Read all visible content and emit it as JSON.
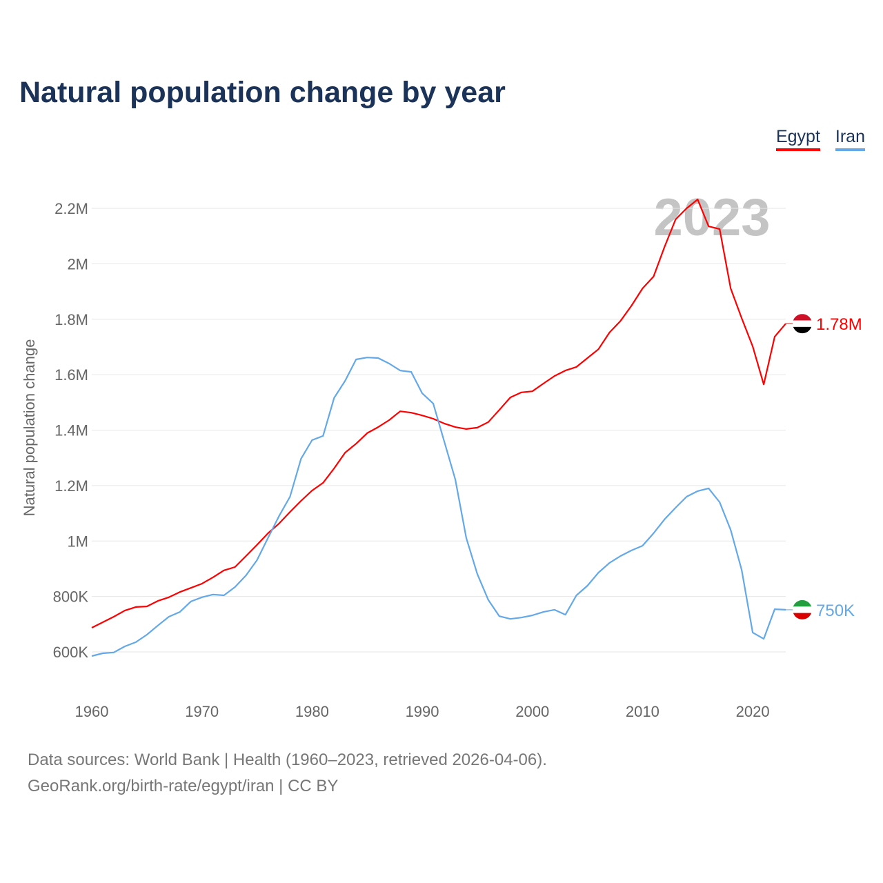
{
  "title": "Natural population change by year",
  "legend": [
    {
      "name": "Egypt",
      "color": "#ff0000"
    },
    {
      "name": "Iran",
      "color": "#63a8e8"
    }
  ],
  "footer": {
    "line1": "Data sources: World Bank | Health (1960–2023, retrieved 2026-04-06).",
    "line2": "GeoRank.org/birth-rate/egypt/iran | CC BY"
  },
  "chart_data": {
    "type": "line",
    "title": "Natural population change by year",
    "xlabel": "",
    "ylabel": "Natural population change",
    "watermark_year": "2023",
    "xlim": [
      1960,
      2023
    ],
    "ylim": [
      500000,
      2300000
    ],
    "x_ticks": [
      1960,
      1970,
      1980,
      1990,
      2000,
      2010,
      2020
    ],
    "y_ticks": [
      600000,
      800000,
      1000000,
      1200000,
      1400000,
      1600000,
      1800000,
      2000000,
      2200000
    ],
    "y_tick_labels": [
      "600K",
      "800K",
      "1M",
      "1.2M",
      "1.4M",
      "1.6M",
      "1.8M",
      "2M",
      "2.2M"
    ],
    "grid": true,
    "legend_position": "top-right",
    "x": [
      1960,
      1961,
      1962,
      1963,
      1964,
      1965,
      1966,
      1967,
      1968,
      1969,
      1970,
      1971,
      1972,
      1973,
      1974,
      1975,
      1976,
      1977,
      1978,
      1979,
      1980,
      1981,
      1982,
      1983,
      1984,
      1985,
      1986,
      1987,
      1988,
      1989,
      1990,
      1991,
      1992,
      1993,
      1994,
      1995,
      1996,
      1997,
      1998,
      1999,
      2000,
      2001,
      2002,
      2003,
      2004,
      2005,
      2006,
      2007,
      2008,
      2009,
      2010,
      2011,
      2012,
      2013,
      2014,
      2015,
      2016,
      2017,
      2018,
      2019,
      2020,
      2021,
      2022,
      2023
    ],
    "series": [
      {
        "name": "Egypt",
        "color": "#ff0000",
        "end_label": "1.78M",
        "flag": [
          "#ce1126",
          "#ffffff",
          "#000000"
        ],
        "values": [
          687000,
          707000,
          727000,
          749000,
          762000,
          764000,
          784000,
          797000,
          816000,
          831000,
          846000,
          869000,
          894000,
          906000,
          946000,
          986000,
          1028000,
          1063000,
          1105000,
          1145000,
          1182000,
          1210000,
          1262000,
          1319000,
          1351000,
          1389000,
          1411000,
          1436000,
          1468000,
          1463000,
          1453000,
          1441000,
          1424000,
          1411000,
          1404000,
          1409000,
          1429000,
          1473000,
          1518000,
          1536000,
          1540000,
          1568000,
          1595000,
          1615000,
          1628000,
          1660000,
          1692000,
          1752000,
          1794000,
          1849000,
          1911000,
          1954000,
          2061000,
          2160000,
          2200000,
          2232000,
          2135000,
          2125000,
          1911000,
          1804000,
          1702000,
          1565000,
          1737000,
          1784000
        ]
      },
      {
        "name": "Iran",
        "color": "#63a8e8",
        "end_label": "750K",
        "flag": [
          "#239f40",
          "#ffffff",
          "#da0000"
        ],
        "values": [
          585000,
          595000,
          598000,
          620000,
          635000,
          662000,
          695000,
          727000,
          744000,
          782000,
          797000,
          807000,
          804000,
          834000,
          876000,
          931000,
          1011000,
          1090000,
          1160000,
          1297000,
          1364000,
          1379000,
          1516000,
          1578000,
          1655000,
          1662000,
          1660000,
          1640000,
          1615000,
          1610000,
          1533000,
          1496000,
          1359000,
          1222000,
          1011000,
          881000,
          787000,
          729000,
          719000,
          724000,
          732000,
          744000,
          752000,
          734000,
          804000,
          839000,
          886000,
          921000,
          946000,
          966000,
          983000,
          1028000,
          1078000,
          1120000,
          1160000,
          1180000,
          1190000,
          1140000,
          1040000,
          896000,
          670000,
          647000,
          754000,
          752000
        ]
      }
    ]
  }
}
